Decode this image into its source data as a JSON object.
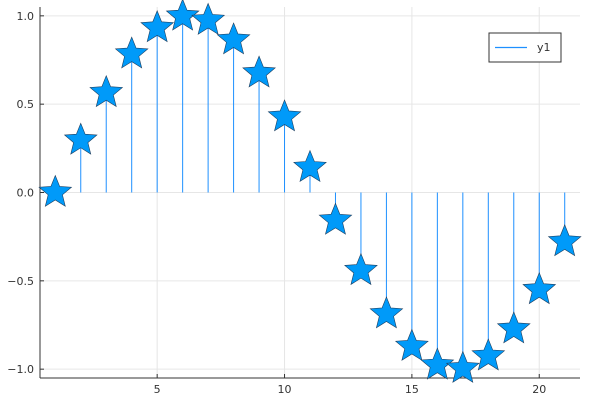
{
  "chart_data": {
    "type": "scatter",
    "style": "stem",
    "marker": "star",
    "series": [
      {
        "name": "y1",
        "color": "#1e90ff",
        "x": [
          1,
          2,
          3,
          4,
          5,
          6,
          7,
          8,
          9,
          10,
          11,
          12,
          13,
          14,
          15,
          16,
          17,
          18,
          19,
          20,
          21
        ],
        "values": [
          0.0,
          0.2955,
          0.5646,
          0.7833,
          0.932,
          0.9975,
          0.9738,
          0.8632,
          0.6755,
          0.4274,
          0.1411,
          -0.1577,
          -0.4425,
          -0.6878,
          -0.8716,
          -0.9775,
          -0.9962,
          -0.9258,
          -0.7728,
          -0.5507,
          -0.2794
        ]
      }
    ],
    "xlim": [
      0.4,
      21.6
    ],
    "ylim": [
      -1.05,
      1.05
    ],
    "xticks": [
      5,
      10,
      15,
      20
    ],
    "yticks": [
      -1.0,
      -0.5,
      0.0,
      0.5,
      1.0
    ],
    "xtick_labels": [
      "5",
      "10",
      "15",
      "20"
    ],
    "ytick_labels": [
      "−1.0",
      "−0.5",
      "0.0",
      "0.5",
      "1.0"
    ],
    "grid": true,
    "legend_position": "top-right",
    "title": "",
    "xlabel": "",
    "ylabel": ""
  }
}
